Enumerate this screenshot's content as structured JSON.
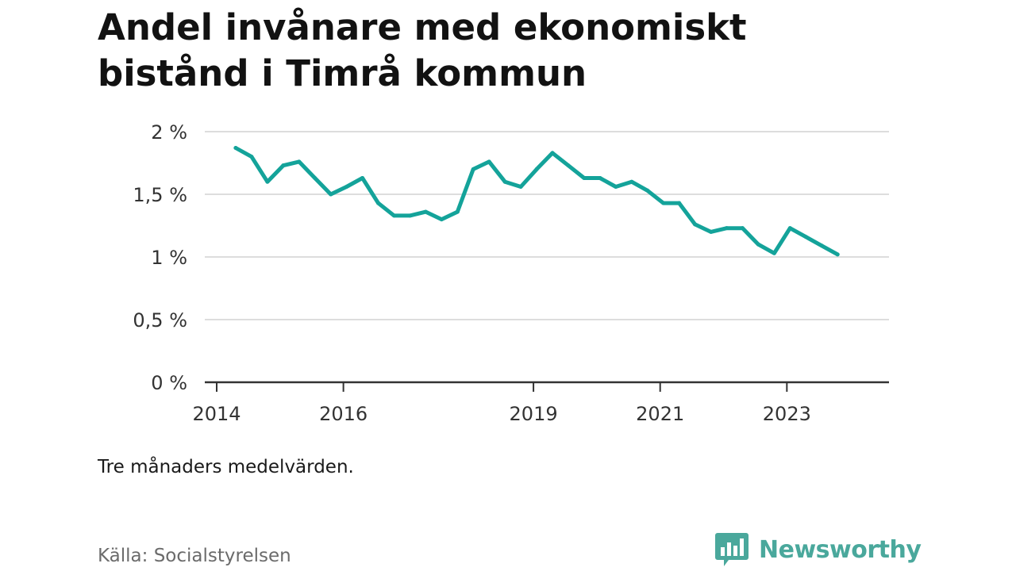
{
  "title": "Andel invånare med ekonomiskt bistånd i Timrå kommun",
  "note": "Tre månaders medelvärden.",
  "source": "Källa: Socialstyrelsen",
  "brand": {
    "name": "Newsworthy",
    "icon": "bar-chart-speech-icon",
    "color": "#4aa89c"
  },
  "colors": {
    "line": "#14a39a",
    "grid": "#dddddd",
    "axis": "#333333"
  },
  "chart_data": {
    "type": "line",
    "title": "Andel invånare med ekonomiskt bistånd i Timrå kommun",
    "xlabel": "",
    "ylabel": "",
    "ylim": [
      0,
      2
    ],
    "xlim": [
      2014,
      2024.8
    ],
    "x_ticks": [
      {
        "value": 2014,
        "label": "2014"
      },
      {
        "value": 2016,
        "label": "2016"
      },
      {
        "value": 2019,
        "label": "2019"
      },
      {
        "value": 2021,
        "label": "2021"
      },
      {
        "value": 2023,
        "label": "2023"
      }
    ],
    "y_ticks": [
      {
        "value": 0,
        "label": "0 %"
      },
      {
        "value": 0.5,
        "label": "0,5 %"
      },
      {
        "value": 1,
        "label": "1 %"
      },
      {
        "value": 1.5,
        "label": "1,5 %"
      },
      {
        "value": 2,
        "label": "2 %"
      }
    ],
    "grid": true,
    "series": [
      {
        "x": [
          2014.3,
          2014.55,
          2014.8,
          2015.05,
          2015.3,
          2015.55,
          2015.8,
          2016.05,
          2016.3,
          2016.55,
          2016.8,
          2017.05,
          2017.3,
          2017.55,
          2017.8,
          2018.05,
          2018.3,
          2018.55,
          2018.8,
          2019.05,
          2019.3,
          2019.55,
          2019.8,
          2020.05,
          2020.3,
          2020.55,
          2020.8,
          2021.05,
          2021.3,
          2021.55,
          2021.8,
          2022.05,
          2022.3,
          2022.55,
          2022.8,
          2023.05,
          2023.3,
          2023.55,
          2023.8
        ],
        "values": [
          1.87,
          1.8,
          1.6,
          1.73,
          1.76,
          1.63,
          1.5,
          1.56,
          1.63,
          1.43,
          1.33,
          1.33,
          1.36,
          1.3,
          1.36,
          1.7,
          1.76,
          1.6,
          1.56,
          1.7,
          1.83,
          1.73,
          1.63,
          1.63,
          1.56,
          1.6,
          1.53,
          1.43,
          1.43,
          1.26,
          1.2,
          1.23,
          1.23,
          1.1,
          1.03,
          1.23,
          1.16,
          1.09,
          1.02
        ]
      }
    ]
  }
}
